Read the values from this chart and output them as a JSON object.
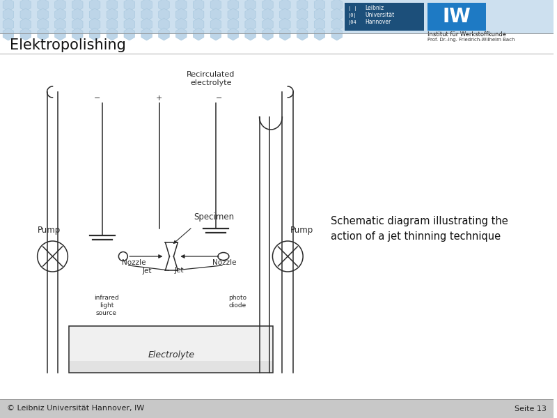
{
  "title": "Elektropolishing",
  "subtitle": "Schematic diagram illustrating the\naction of a jet thinning technique",
  "footer_left": "© Leibniz Universität Hannover, IW",
  "footer_right": "Seite 13",
  "header_inst": "Institut für Werkstoffkunde",
  "header_prof": "Prof. Dr.-Ing. Friedrich-Wilhelm Bach",
  "bg_color": "#ffffff",
  "line_color": "#2a2a2a",
  "header_hex_color": "#cde0ef",
  "luh_dark": "#1a3a5c",
  "iw_blue": "#1e6fb5"
}
